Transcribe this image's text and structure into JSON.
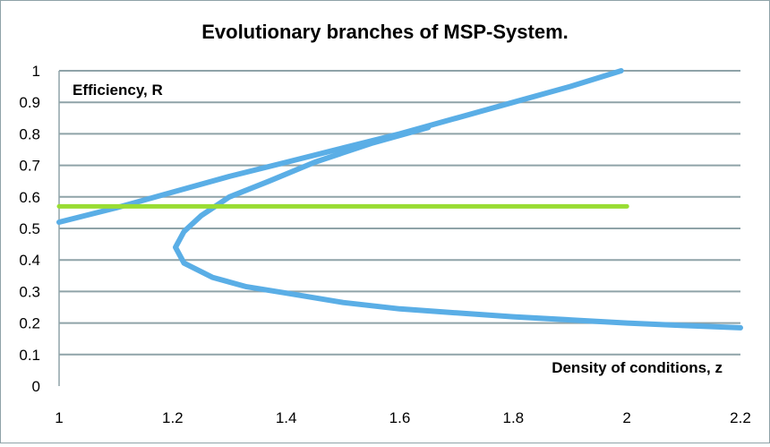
{
  "chart_data": {
    "type": "line",
    "title": "Evolutionary branches of MSP-System.",
    "xlabel": "Density of conditions, z",
    "ylabel": "Efficiency, R",
    "xlim": [
      1,
      2.2
    ],
    "ylim": [
      0,
      1
    ],
    "x_ticks": [
      "1",
      "1.2",
      "1.4",
      "1.6",
      "1.8",
      "2",
      "2.2"
    ],
    "y_ticks": [
      "0",
      "0.1",
      "0.2",
      "0.3",
      "0.4",
      "0.5",
      "0.6",
      "0.7",
      "0.8",
      "0.9",
      "1"
    ],
    "grid": "horizontal",
    "colors": {
      "curve": "#5aaee6",
      "threshold": "#99dd33",
      "grid": "#8fa3a8"
    },
    "series": [
      {
        "points": [
          {
            "x": 1.0,
            "y": 0.52
          },
          {
            "x": 1.1,
            "y": 0.565
          },
          {
            "x": 1.2,
            "y": 0.615
          },
          {
            "x": 1.3,
            "y": 0.665
          },
          {
            "x": 1.4,
            "y": 0.71
          },
          {
            "x": 1.5,
            "y": 0.755
          },
          {
            "x": 1.6,
            "y": 0.8
          },
          {
            "x": 1.7,
            "y": 0.85
          },
          {
            "x": 1.8,
            "y": 0.9
          },
          {
            "x": 1.9,
            "y": 0.95
          },
          {
            "x": 1.99,
            "y": 1.0
          }
        ]
      },
      {
        "points": [
          {
            "x": 1.65,
            "y": 0.82
          },
          {
            "x": 1.55,
            "y": 0.77
          },
          {
            "x": 1.45,
            "y": 0.71
          },
          {
            "x": 1.37,
            "y": 0.65
          },
          {
            "x": 1.3,
            "y": 0.6
          },
          {
            "x": 1.25,
            "y": 0.54
          },
          {
            "x": 1.22,
            "y": 0.49
          },
          {
            "x": 1.205,
            "y": 0.44
          },
          {
            "x": 1.22,
            "y": 0.39
          },
          {
            "x": 1.27,
            "y": 0.345
          },
          {
            "x": 1.33,
            "y": 0.315
          },
          {
            "x": 1.4,
            "y": 0.295
          },
          {
            "x": 1.5,
            "y": 0.265
          },
          {
            "x": 1.6,
            "y": 0.245
          },
          {
            "x": 1.7,
            "y": 0.232
          },
          {
            "x": 1.8,
            "y": 0.22
          },
          {
            "x": 1.9,
            "y": 0.21
          },
          {
            "x": 2.0,
            "y": 0.2
          },
          {
            "x": 2.1,
            "y": 0.192
          },
          {
            "x": 2.2,
            "y": 0.185
          }
        ]
      },
      {
        "points": [
          {
            "x": 1.0,
            "y": 0.57
          },
          {
            "x": 2.0,
            "y": 0.57
          }
        ]
      }
    ]
  }
}
